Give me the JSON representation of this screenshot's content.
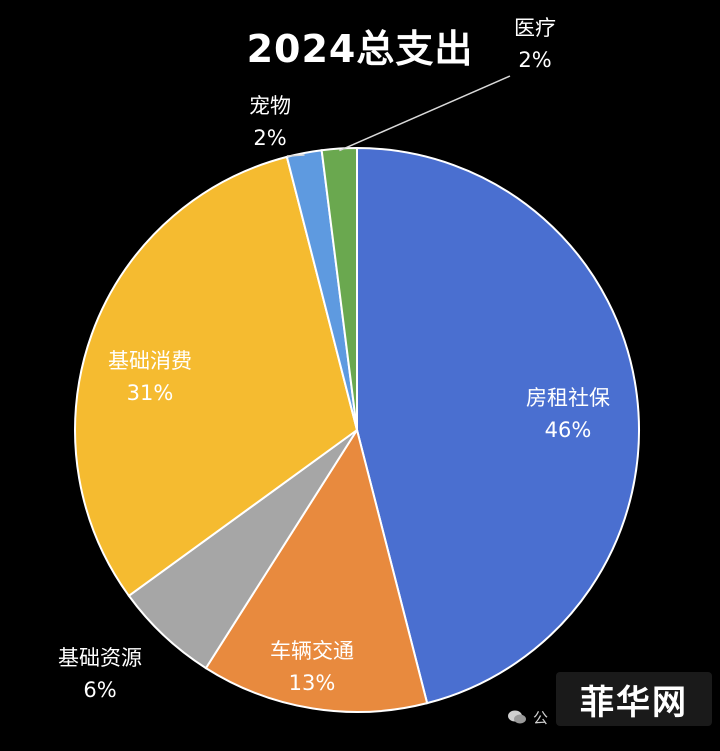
{
  "chart_data": {
    "type": "pie",
    "title": "2024总支出",
    "slices": [
      {
        "label": "房租社保",
        "value": 46,
        "pct_text": "46%",
        "color": "#4a6fd0"
      },
      {
        "label": "车辆交通",
        "value": 13,
        "pct_text": "13%",
        "color": "#e88a3e"
      },
      {
        "label": "基础资源",
        "value": 6,
        "pct_text": "6%",
        "color": "#a6a6a6"
      },
      {
        "label": "基础消费",
        "value": 31,
        "pct_text": "31%",
        "color": "#f5bb30"
      },
      {
        "label": "宠物",
        "value": 2,
        "pct_text": "2%",
        "color": "#5e9ae0"
      },
      {
        "label": "医疗",
        "value": 2,
        "pct_text": "2%",
        "color": "#6aa84f"
      }
    ],
    "legend": "none",
    "data_labels": "outside-or-inside"
  },
  "watermark": {
    "text": "菲华网",
    "icon": "wechat-icon",
    "partial_text": "公"
  },
  "colors": {
    "background": "#000000",
    "label_light": "#ffffff",
    "label_dark_bg": "#ffffff"
  }
}
